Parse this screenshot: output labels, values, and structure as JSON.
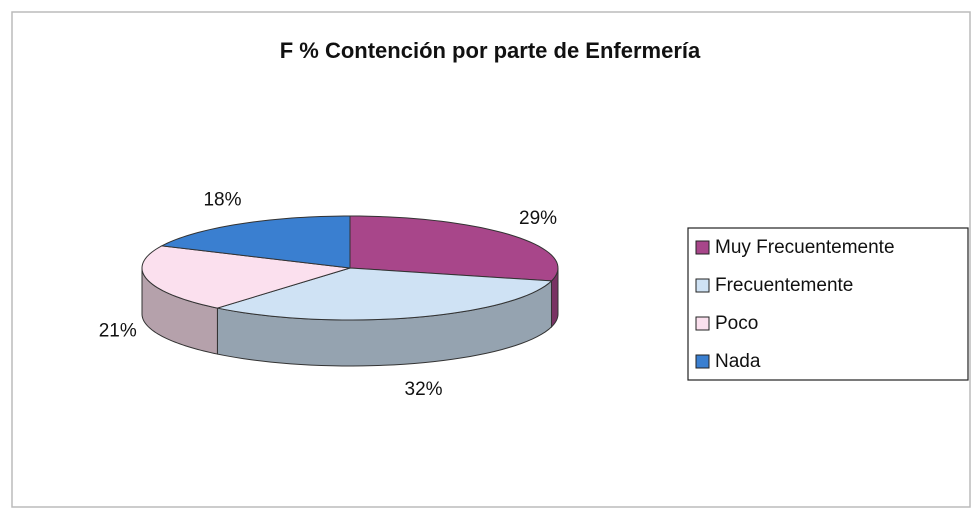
{
  "chart_data": {
    "type": "pie",
    "title": "F % Contención por parte de Enfermería",
    "categories": [
      "Muy Frecuentemente",
      "Frecuentemente",
      "Poco",
      "Nada"
    ],
    "values": [
      29,
      32,
      21,
      18
    ],
    "value_labels": [
      "29%",
      "32%",
      "21%",
      "18%"
    ],
    "colors": [
      "#a8468a",
      "#cfe2f4",
      "#fbe0ee",
      "#3a7fd0"
    ],
    "legend": "right"
  }
}
